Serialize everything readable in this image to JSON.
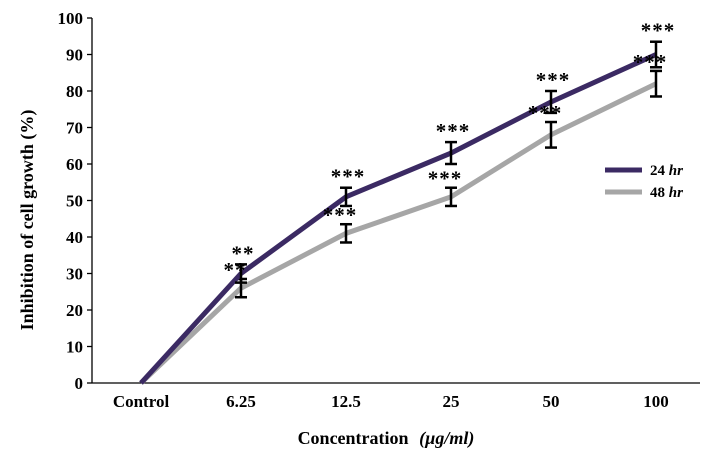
{
  "chart_data": {
    "type": "line",
    "title": "",
    "xlabel": "Concentration",
    "xlabel_unit": "(µg/ml)",
    "ylabel": "Inhibition of cell growth (%)",
    "ylim": [
      0,
      100
    ],
    "yticks": [
      "0",
      "10",
      "20",
      "30",
      "40",
      "50",
      "60",
      "70",
      "80",
      "90",
      "100"
    ],
    "categories": [
      "Control",
      "6.25",
      "12.5",
      "25",
      "50",
      "100"
    ],
    "grid": false,
    "legend_position": "right",
    "series": [
      {
        "name": "24 hr",
        "name_value": "24",
        "name_unit": "hr",
        "color": "#3b2a63",
        "values": [
          0,
          30,
          51,
          63,
          77,
          90
        ],
        "errors": [
          null,
          2.5,
          2.5,
          3,
          3,
          3.5
        ],
        "significance": [
          "",
          "**",
          "***",
          "***",
          "***",
          "***"
        ]
      },
      {
        "name": "48 hr",
        "name_value": "48",
        "name_unit": "hr",
        "color": "#a6a6a6",
        "values": [
          0,
          26,
          41,
          51,
          68,
          82
        ],
        "errors": [
          null,
          2.5,
          2.5,
          2.5,
          3.5,
          3.5
        ],
        "significance": [
          "",
          "**",
          "***",
          "***",
          "***",
          "***"
        ]
      }
    ]
  }
}
